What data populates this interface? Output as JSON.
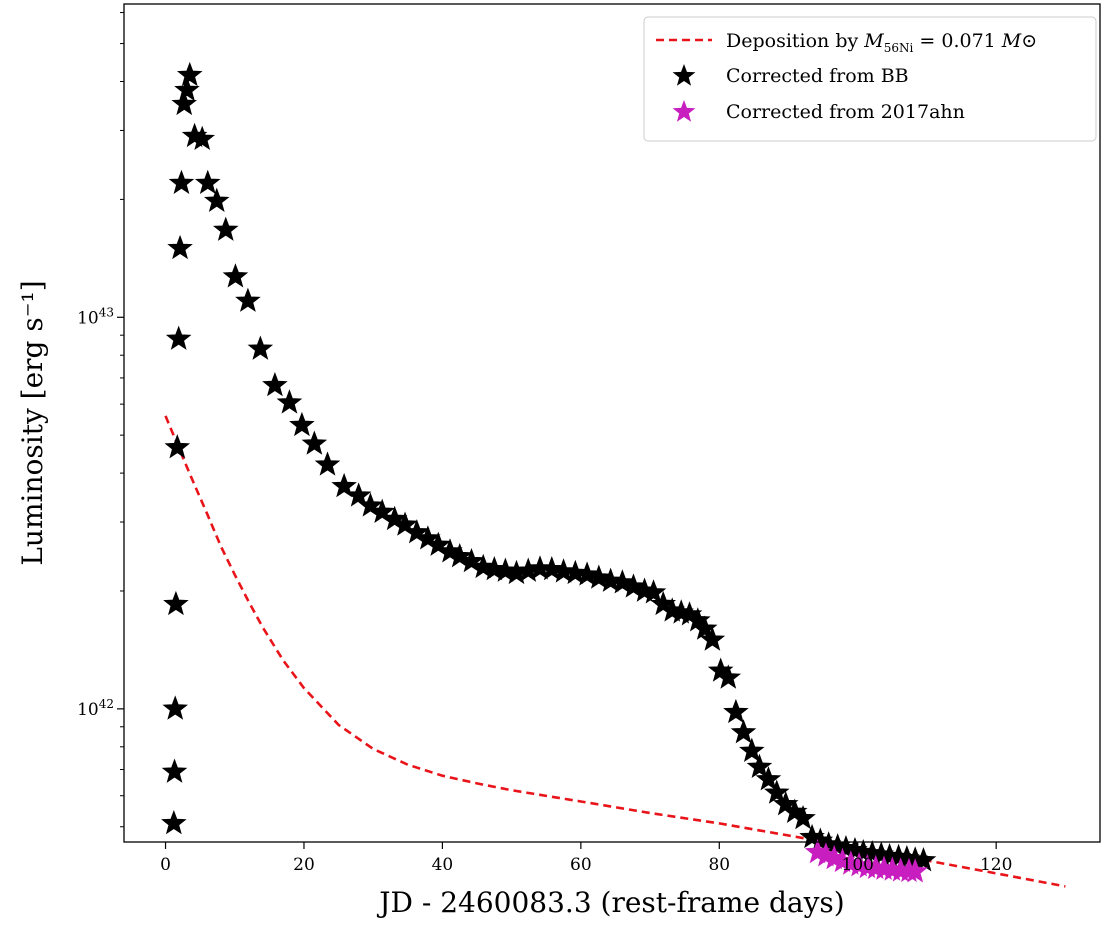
{
  "chart_data": {
    "type": "scatter",
    "xlabel": "JD - 2460083.3 (rest-frame days)",
    "ylabel": "Luminosity [erg s⁻¹]",
    "xlim": [
      -6,
      135
    ],
    "ylim_log10": [
      41.66,
      43.8
    ],
    "y_scale": "log",
    "x_ticks": [
      0,
      20,
      40,
      60,
      80,
      100,
      120
    ],
    "x_tick_labels": [
      "0",
      "20",
      "40",
      "60",
      "80",
      "100",
      "120"
    ],
    "y_ticks": [
      {
        "value": 1e+42,
        "base": "10",
        "exp": "42"
      },
      {
        "value": 1e+43,
        "base": "10",
        "exp": "43"
      }
    ],
    "grid": false,
    "legend_position": "top-right",
    "series": [
      {
        "name": "Deposition by M56Ni = 0.071 Mo",
        "legend_parts": {
          "pre": "Deposition by ",
          "M": "M",
          "sub": "56Ni",
          "mid": " = 0.071 ",
          "M2": "M",
          "sun": "⊙"
        },
        "kind": "line",
        "style": "dashed",
        "color": "#e8141a",
        "x": [
          0,
          2,
          4,
          6,
          8,
          10,
          12,
          14,
          17,
          20,
          25,
          30,
          35,
          40,
          45,
          50,
          60,
          70,
          80,
          90,
          100,
          110,
          120,
          130
        ],
        "y": [
          5.6e+42,
          4.6e+42,
          3.8e+42,
          3.15e+42,
          2.6e+42,
          2.2e+42,
          1.88e+42,
          1.62e+42,
          1.33e+42,
          1.13e+42,
          9.1e+41,
          7.9e+41,
          7.2e+41,
          6.75e+41,
          6.45e+41,
          6.2e+41,
          5.8e+41,
          5.42e+41,
          5.1e+41,
          4.75e+41,
          4.42e+41,
          4.1e+41,
          3.8e+41,
          3.52e+41
        ]
      },
      {
        "name": "Corrected from BB",
        "kind": "marker",
        "marker": "star",
        "color": "#000000",
        "x": [
          1.2,
          1.3,
          1.4,
          1.5,
          1.7,
          1.9,
          2.1,
          2.3,
          2.7,
          3.1,
          3.5,
          4.2,
          5.3,
          6.1,
          7.4,
          8.7,
          10.1,
          11.9,
          13.7,
          15.8,
          17.9,
          19.7,
          21.5,
          23.4,
          25.8,
          27.9,
          29.6,
          31.3,
          33.1,
          34.6,
          36.3,
          37.9,
          39.4,
          41.1,
          42.5,
          44.2,
          45.9,
          47.5,
          49.1,
          50.7,
          52.4,
          54.1,
          55.8,
          57.5,
          59.2,
          60.9,
          62.6,
          64.3,
          66.0,
          67.6,
          69.2,
          70.5,
          71.9,
          73.2,
          74.5,
          75.7,
          76.9,
          77.9,
          79.0,
          80.2,
          81.3,
          82.4,
          83.5,
          84.7,
          85.8,
          87.1,
          88.3,
          89.6,
          90.9,
          92.1,
          93.4,
          94.6,
          95.8,
          97.1,
          98.3,
          99.6,
          100.8,
          102.1,
          103.4,
          104.6,
          105.9,
          107.1,
          108.3,
          109.5
        ],
        "y": [
          5.1e+41,
          6.9e+41,
          1e+42,
          1.85e+42,
          4.65e+42,
          8.8e+42,
          1.5e+43,
          2.2e+43,
          3.5e+43,
          3.8e+43,
          4.15e+43,
          2.9e+43,
          2.85e+43,
          2.2e+43,
          1.98e+43,
          1.67e+43,
          1.27e+43,
          1.1e+43,
          8.3e+42,
          6.7e+42,
          6.05e+42,
          5.3e+42,
          4.75e+42,
          4.2e+42,
          3.7e+42,
          3.5e+42,
          3.3e+42,
          3.18e+42,
          3.05e+42,
          2.95e+42,
          2.82e+42,
          2.72e+42,
          2.62e+42,
          2.52e+42,
          2.45e+42,
          2.38e+42,
          2.3e+42,
          2.27e+42,
          2.25e+42,
          2.22e+42,
          2.25e+42,
          2.28e+42,
          2.27e+42,
          2.24e+42,
          2.22e+42,
          2.2e+42,
          2.16e+42,
          2.12e+42,
          2.1e+42,
          2.05e+42,
          2e+42,
          1.98e+42,
          1.85e+42,
          1.78e+42,
          1.76e+42,
          1.74e+42,
          1.68e+42,
          1.6e+42,
          1.5e+42,
          1.25e+42,
          1.2e+42,
          9.8e+41,
          8.7e+41,
          7.8e+41,
          7.1e+41,
          6.6e+41,
          6.1e+41,
          5.7e+41,
          5.45e+41,
          5.25e+41,
          4.7e+41,
          4.6e+41,
          4.5e+41,
          4.45e+41,
          4.4e+41,
          4.35e+41,
          4.3e+41,
          4.27e+41,
          4.24e+41,
          4.2e+41,
          4.18e+41,
          4.15e+41,
          4.12e+41,
          4.1e+41
        ]
      },
      {
        "name": "Corrected from 2017ahn",
        "kind": "marker",
        "marker": "star",
        "color": "#c81ec0",
        "x": [
          94.2,
          95.4,
          96.6,
          97.8,
          99.0,
          100.2,
          101.4,
          102.6,
          103.8,
          105.0,
          106.2,
          107.4,
          108.3
        ],
        "y": [
          4.3e+41,
          4.22e+41,
          4.15e+41,
          4.08e+41,
          4.02e+41,
          3.98e+41,
          3.94e+41,
          3.92e+41,
          3.9e+41,
          3.88e+41,
          3.86e+41,
          3.85e+41,
          3.84e+41
        ]
      }
    ]
  }
}
